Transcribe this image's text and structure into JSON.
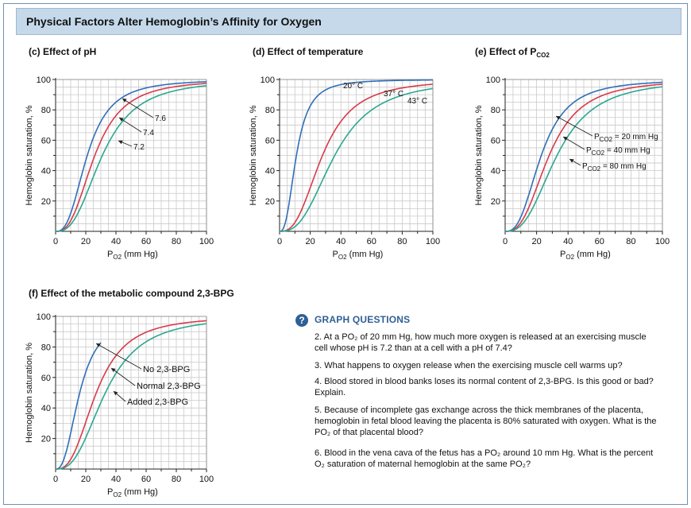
{
  "title": "Physical Factors Alter Hemoglobin’s Affinity for Oxygen",
  "colors": {
    "frame": "#6e8fb3",
    "title_bar": "#c5d9ea",
    "blue": "#2f6fb8",
    "red": "#d93a4a",
    "green": "#2aa88f",
    "grid": "#c9c9c9",
    "question_accent": "#2f5f95"
  },
  "axis": {
    "y_label": "Hemoglobin saturation, %",
    "x_label_base": "P",
    "x_label_sub": "O2",
    "x_label_unit": " (mm Hg)",
    "x_ticks": [
      "0",
      "20",
      "40",
      "60",
      "80",
      "100"
    ],
    "y_ticks": [
      "20",
      "40",
      "60",
      "80",
      "100"
    ]
  },
  "chart_data": [
    {
      "type": "line",
      "id": "ph",
      "title": "(c) Effect of pH",
      "xlabel": "PO2 (mm Hg)",
      "ylabel": "Hemoglobin saturation, %",
      "xlim": [
        0,
        100
      ],
      "ylim": [
        0,
        100
      ],
      "series": [
        {
          "name": "7.6",
          "color": "#2f6fb8",
          "p50": 21,
          "n": 2.7
        },
        {
          "name": "7.4",
          "color": "#d93a4a",
          "p50": 26,
          "n": 2.7
        },
        {
          "name": "7.2",
          "color": "#2aa88f",
          "p50": 31,
          "n": 2.7
        }
      ],
      "annotations": [
        "7.6",
        "7.4",
        "7.2"
      ]
    },
    {
      "type": "line",
      "id": "temp",
      "title": "(d) Effect of temperature",
      "xlabel": "PO2 (mm Hg)",
      "ylabel": "Hemoglobin saturation, %",
      "xlim": [
        0,
        100
      ],
      "ylim": [
        0,
        100
      ],
      "series": [
        {
          "name": "20° C",
          "color": "#2f6fb8",
          "p50": 11,
          "n": 2.6
        },
        {
          "name": "37° C",
          "color": "#d93a4a",
          "p50": 28,
          "n": 2.7
        },
        {
          "name": "43° C",
          "color": "#2aa88f",
          "p50": 36,
          "n": 2.7
        }
      ],
      "annotations": [
        "20° C",
        "37° C",
        "43° C"
      ]
    },
    {
      "type": "line",
      "id": "co2",
      "title_base": "(e) Effect of P",
      "title_sub": "CO2",
      "xlabel": "PO2 (mm Hg)",
      "ylabel": "Hemoglobin saturation, %",
      "xlim": [
        0,
        100
      ],
      "ylim": [
        0,
        100
      ],
      "series": [
        {
          "name": "PCO2 = 20 mm Hg",
          "color": "#2f6fb8",
          "p50": 23,
          "n": 2.7
        },
        {
          "name": "PCO2 = 40 mm Hg",
          "color": "#d93a4a",
          "p50": 28,
          "n": 2.7
        },
        {
          "name": "PCO2 = 80 mm Hg",
          "color": "#2aa88f",
          "p50": 33,
          "n": 2.7
        }
      ],
      "annotations": [
        {
          "base": "P",
          "sub": "CO2",
          "rest": " = 20 mm Hg"
        },
        {
          "base": "P",
          "sub": "CO2",
          "rest": " = 40 mm Hg"
        },
        {
          "base": "P",
          "sub": "CO2",
          "rest": " = 80 mm Hg"
        }
      ]
    },
    {
      "type": "line",
      "id": "bpg",
      "title": "(f) Effect of the metabolic compound 2,3-BPG",
      "xlabel": "PO2 (mm Hg)",
      "ylabel": "Hemoglobin saturation, %",
      "xlim": [
        0,
        100
      ],
      "ylim": [
        0,
        100
      ],
      "series": [
        {
          "name": "No 2,3-BPG",
          "color": "#2f6fb8",
          "p50": 16,
          "n": 2.5,
          "xmax": 30
        },
        {
          "name": "Normal 2,3-BPG",
          "color": "#d93a4a",
          "p50": 27,
          "n": 2.7
        },
        {
          "name": "Added 2,3-BPG",
          "color": "#2aa88f",
          "p50": 33,
          "n": 2.7
        }
      ],
      "annotations": [
        "No 2,3-BPG",
        "Normal 2,3-BPG",
        "Added 2,3-BPG"
      ]
    }
  ],
  "questions": {
    "icon": "?",
    "heading": "GRAPH QUESTIONS",
    "items": [
      "2. At a PO₂ of 20 mm Hg, how much more oxygen is released at an exercising muscle cell whose pH is 7.2 than at a cell with a pH of 7.4?",
      "3. What happens to oxygen release when the exercising muscle cell warms up?",
      "4. Blood stored in blood banks loses its normal content of 2,3-BPG. Is this good or bad? Explain.",
      "5. Because of incomplete gas exchange across the thick membranes of the placenta, hemoglobin in fetal blood leaving the placenta is 80% saturated with oxygen. What is the PO₂ of that placental blood?",
      "6. Blood in the vena cava of the fetus has a PO₂ around 10 mm Hg. What is the percent O₂ saturation of maternal hemoglobin at the same PO₂?"
    ]
  }
}
